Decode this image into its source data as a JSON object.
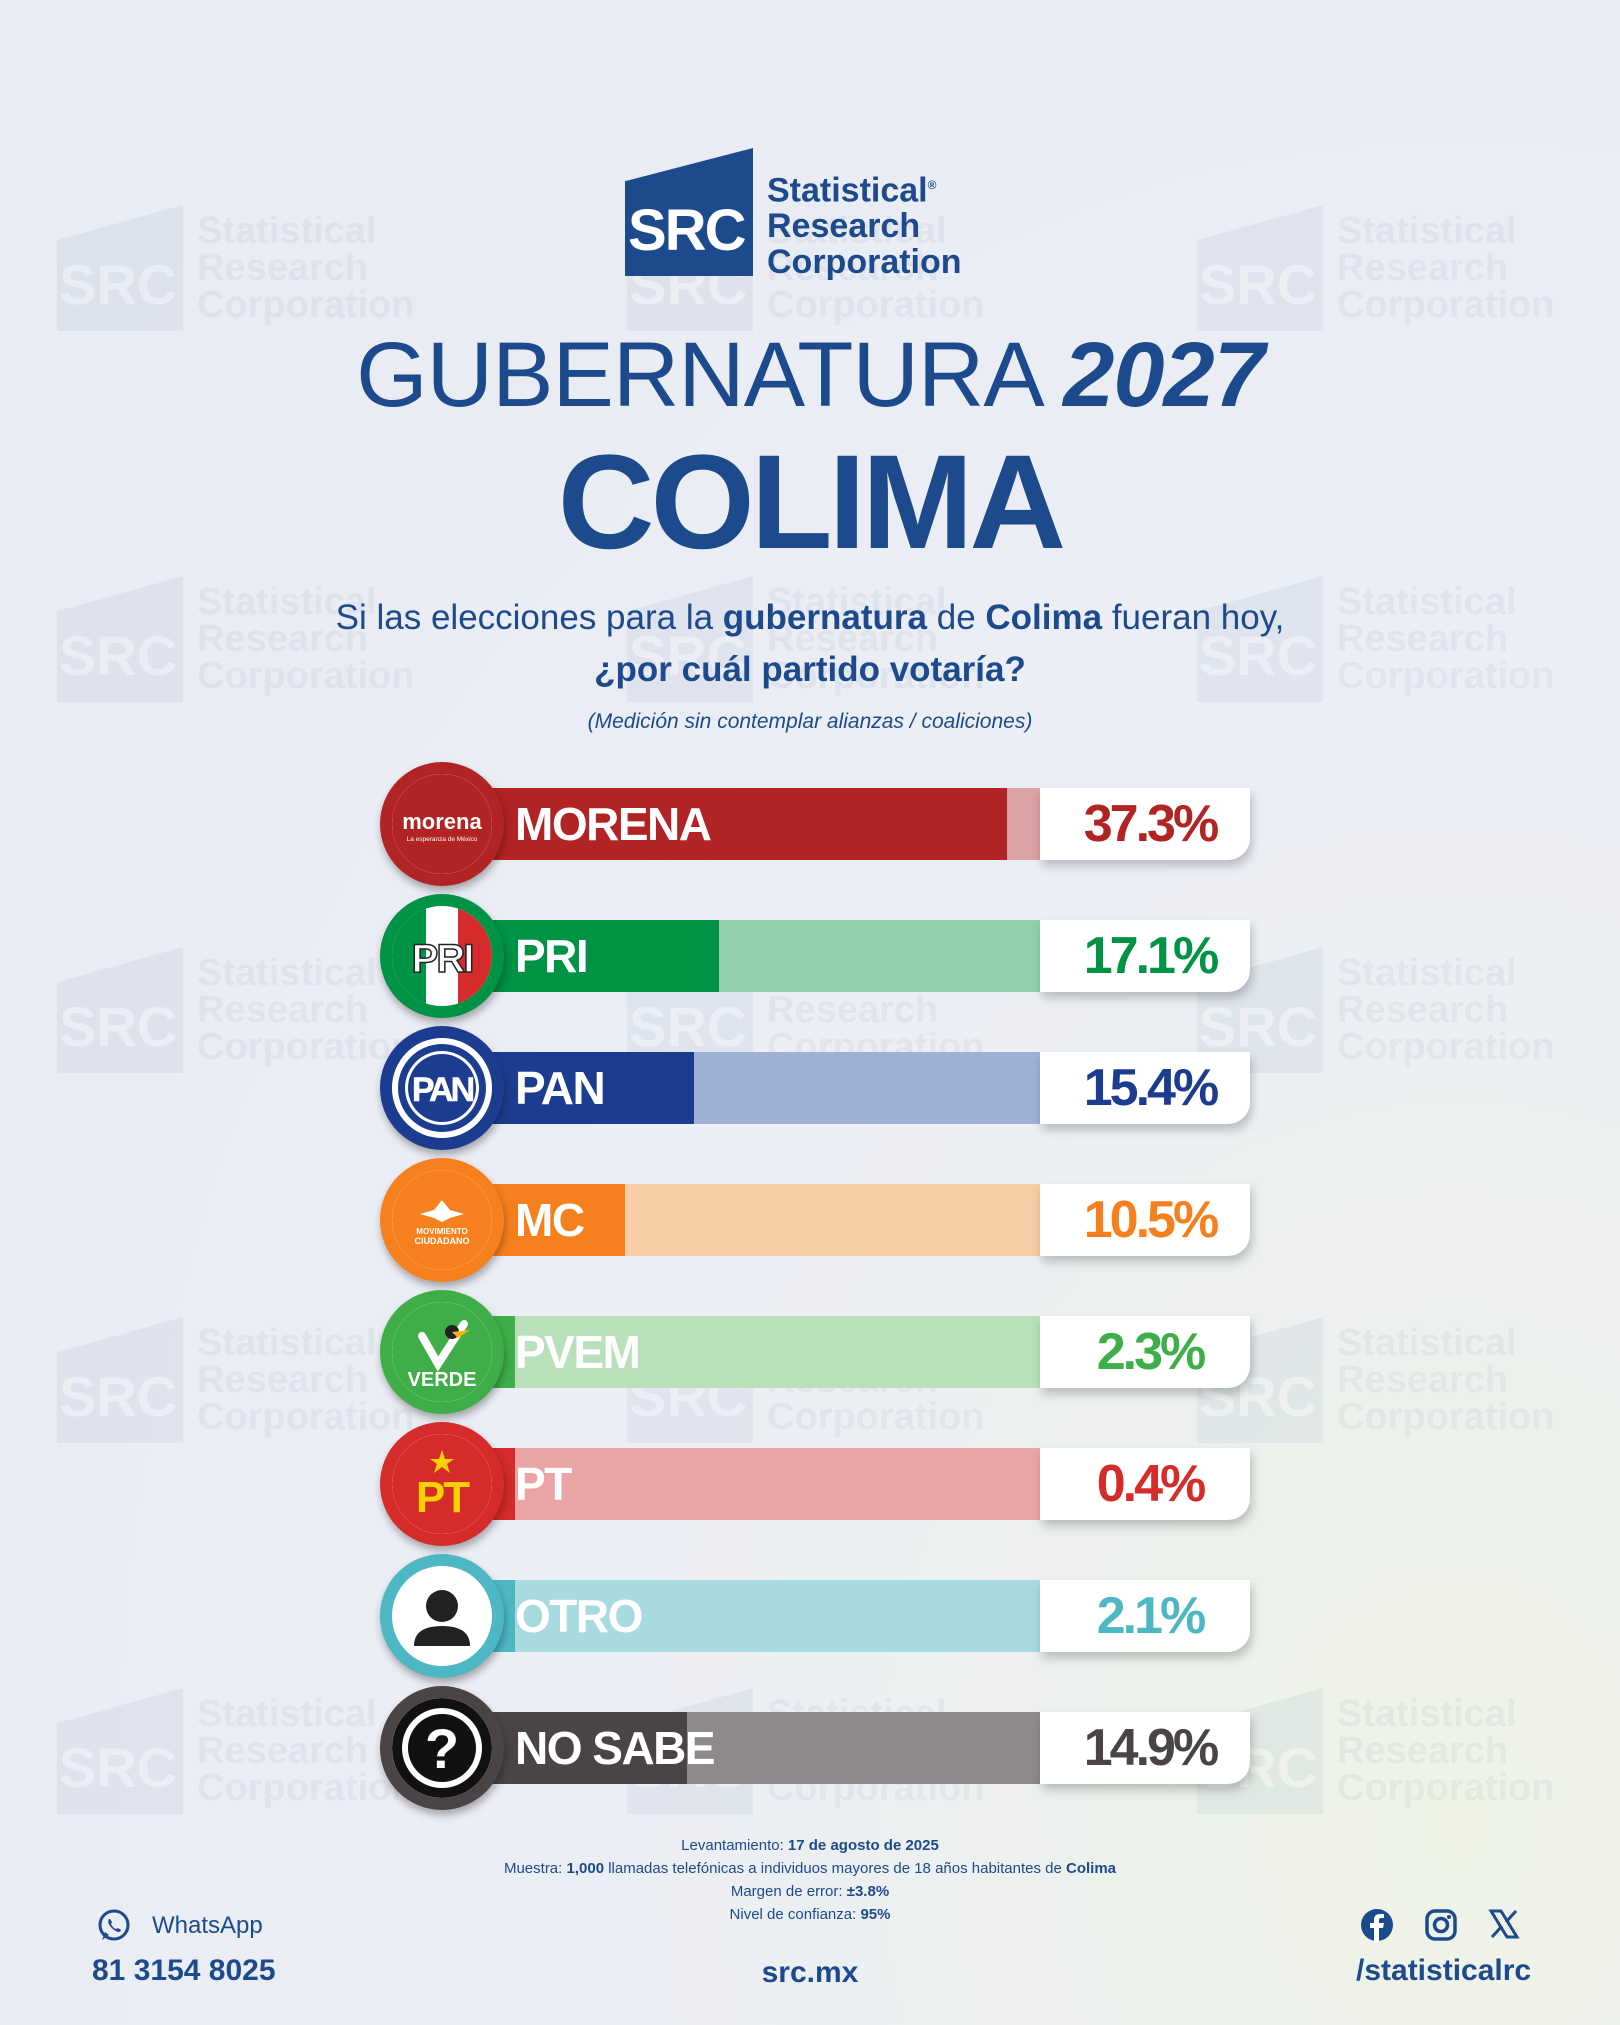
{
  "brand": {
    "logo_mark": "SRC",
    "line1": "Statistical",
    "line2": "Research",
    "line3": "Corporation",
    "reg": "®"
  },
  "title": {
    "main": "GUBERNATURA",
    "year": "2027",
    "state": "COLIMA"
  },
  "question": {
    "p1": "Si las elecciones para la ",
    "b1": "gubernatura",
    "p2": " de ",
    "b2": "Colima",
    "p3": " fueran hoy,",
    "line2": "¿por cuál partido votaría?",
    "note": "(Medición sin contemplar alianzas / coaliciones)"
  },
  "chart_data": {
    "type": "bar",
    "orientation": "horizontal",
    "categories": [
      "MORENA",
      "PRI",
      "PAN",
      "MC",
      "PVEM",
      "PT",
      "OTRO",
      "NO SABE"
    ],
    "values": [
      37.3,
      17.1,
      15.4,
      10.5,
      2.3,
      0.4,
      2.1,
      14.9
    ],
    "value_labels": [
      "37.3%",
      "17.1%",
      "15.4%",
      "10.5%",
      "2.3%",
      "0.4%",
      "2.1%",
      "14.9%"
    ],
    "colors": [
      "#b22323",
      "#009245",
      "#1c3d8f",
      "#f7801e",
      "#3fae49",
      "#d52b2b",
      "#4db8c4",
      "#4a4444"
    ],
    "light_colors": [
      "#d9a3a3",
      "#93cfaa",
      "#9fb2d6",
      "#f6cda5",
      "#b9e0bb",
      "#e9a4a6",
      "#a8dbe0",
      "#8f8a8a"
    ],
    "logos": {
      "morena": {
        "name": "morena",
        "sub": "La esperanza de México"
      },
      "pri": "PRI",
      "pan": "PAN",
      "mc": {
        "l1": "MOVIMIENTO",
        "l2": "CIUDADANO"
      },
      "pvem": "VERDE",
      "pt": "PT",
      "nosabe": "?"
    },
    "xlim": [
      0,
      40
    ]
  },
  "footer": {
    "l1_label": "Levantamiento: ",
    "l1_value": "17 de agosto de 2025",
    "l2_label": "Muestra: ",
    "l2_value": "1,000",
    "l2_mid": " llamadas telefónicas a individuos mayores de 18 años habitantes de ",
    "l2_place": "Colima",
    "l3_label": "Margen de error: ",
    "l3_value": "±3.8%",
    "l4_label": "Nivel de confianza: ",
    "l4_value": "95%",
    "whatsapp_label": "WhatsApp",
    "whatsapp_number": "81 3154 8025",
    "site": "src.mx",
    "handle": "/statisticalrc"
  },
  "icons": [
    "whatsapp-icon",
    "facebook-icon",
    "instagram-icon",
    "x-icon",
    "person-icon",
    "question-icon"
  ]
}
